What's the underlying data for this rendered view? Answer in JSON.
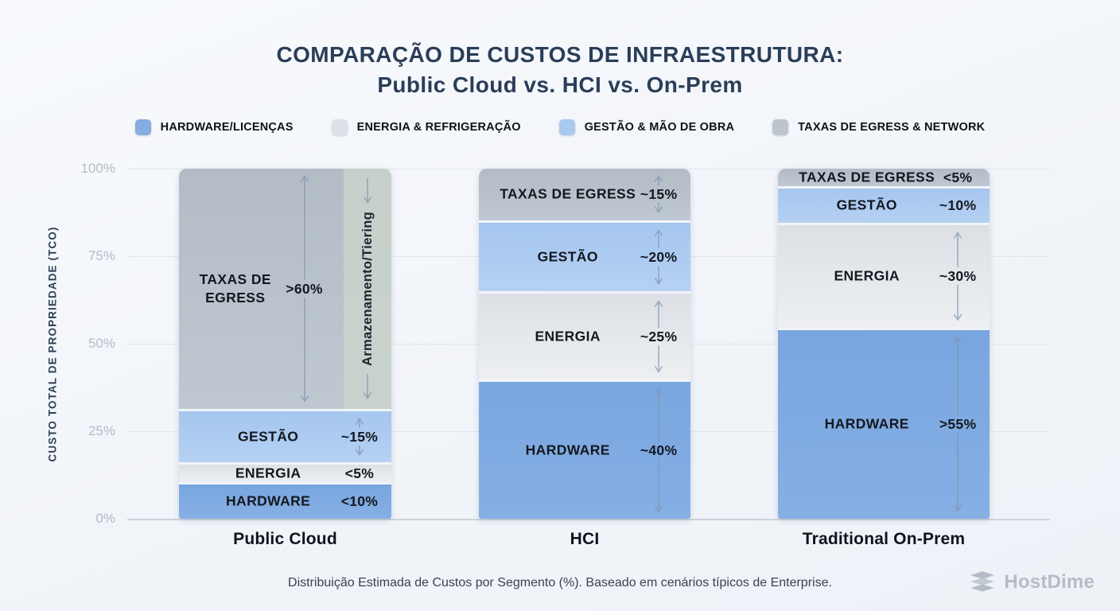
{
  "title": {
    "line1": "COMPARAÇÃO DE CUSTOS DE INFRAESTRUTURA:",
    "line2": "Public Cloud vs. HCI vs. On-Prem"
  },
  "colors": {
    "hardware": "#85ade0",
    "energia": "#dde1e7",
    "gestao": "#a8c9f0",
    "taxas": "#bcc4ce",
    "overlay_strip": "#cad4ca",
    "title_navy": "#2b3e58",
    "arrow": "#7f95af"
  },
  "legend": [
    {
      "key": "hardware",
      "label": "HARDWARE/LICENÇAS"
    },
    {
      "key": "energia",
      "label": "ENERGIA & REFRIGERAÇÃO"
    },
    {
      "key": "gestao",
      "label": "GESTÃO & MÃO DE OBRA"
    },
    {
      "key": "taxas",
      "label": "TAXAS DE EGRESS & NETWORK"
    }
  ],
  "y_axis": {
    "title": "CUSTO TOTAL DE PROPRIEDADE (TCO)",
    "ticks": [
      "100%",
      "75%",
      "50%",
      "25%",
      "0%"
    ]
  },
  "chart_data": {
    "type": "bar",
    "stacked": true,
    "title": "COMPARAÇÃO DE CUSTOS DE INFRAESTRUTURA: Public Cloud vs. HCI vs. On-Prem",
    "ylabel": "CUSTO TOTAL DE PROPRIEDADE (TCO)",
    "ylim": [
      0,
      100
    ],
    "grid": true,
    "legend_position": "top",
    "categories": [
      "Public Cloud",
      "HCI",
      "Traditional On-Prem"
    ],
    "series": [
      {
        "key": "hardware",
        "name": "HARDWARE/LICENÇAS",
        "display": "HARDWARE",
        "values": [
          10,
          40,
          55
        ],
        "point_labels": [
          "<10%",
          "~40%",
          ">55%"
        ]
      },
      {
        "key": "energia",
        "name": "ENERGIA & REFRIGERAÇÃO",
        "display": "ENERGIA",
        "values": [
          5,
          25,
          30
        ],
        "point_labels": [
          "<5%",
          "~25%",
          "~30%"
        ]
      },
      {
        "key": "gestao",
        "name": "GESTÃO & MÃO DE OBRA",
        "display": "GESTÃO",
        "values": [
          15,
          20,
          10
        ],
        "point_labels": [
          "~15%",
          "~20%",
          "~10%"
        ]
      },
      {
        "key": "taxas",
        "name": "TAXAS DE EGRESS & NETWORK",
        "display": "TAXAS DE EGRESS",
        "values": [
          70,
          15,
          5
        ],
        "point_labels": [
          ">60%",
          "~15%",
          "<5%"
        ]
      }
    ],
    "annotation": {
      "text": "Armazenamento/Tiering",
      "category": "Public Cloud",
      "segment": "TAXAS DE EGRESS"
    }
  },
  "footer": {
    "note": "Distribuição Estimada de Custos por Segmento (%). Baseado em cenários típicos de Enterprise.",
    "brand": "HostDime"
  }
}
